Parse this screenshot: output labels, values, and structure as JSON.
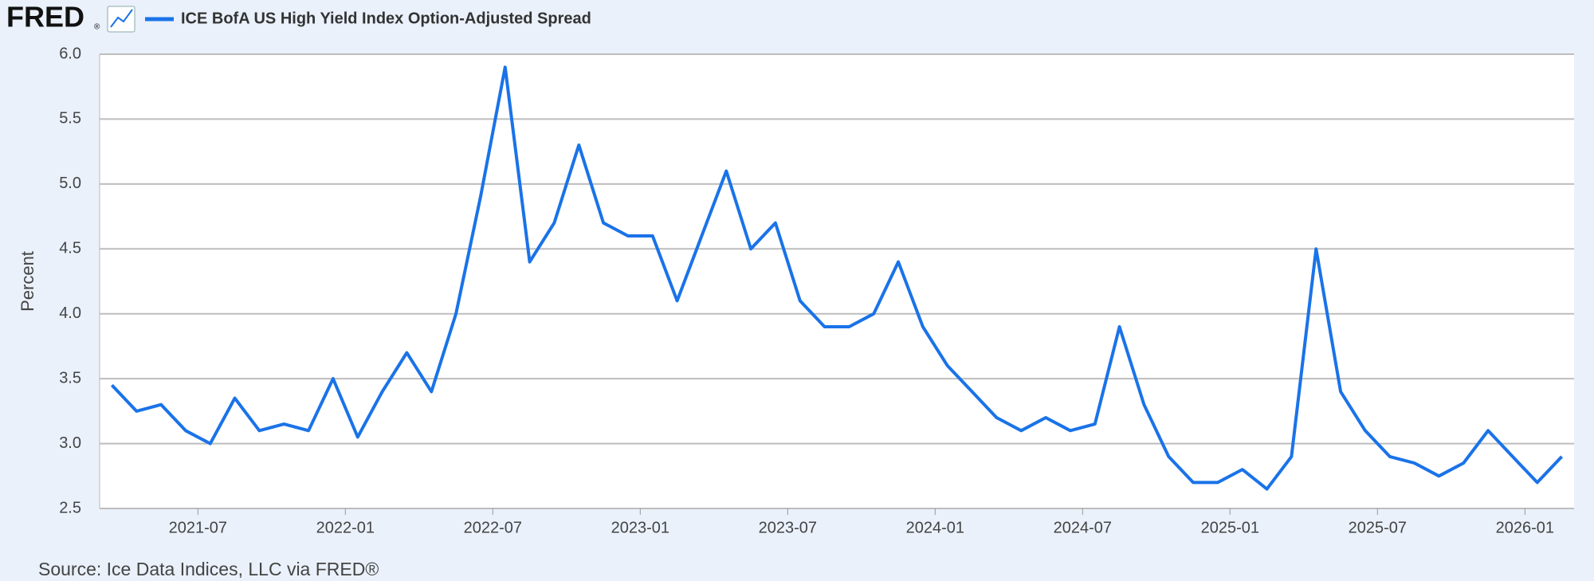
{
  "chart_data": {
    "type": "line",
    "logo": "FRED",
    "logo_mark": "®",
    "ylabel": "Percent",
    "source": "Source: Ice Data Indices, LLC via FRED®",
    "x": [
      "2021-03",
      "2021-04",
      "2021-05",
      "2021-06",
      "2021-07",
      "2021-08",
      "2021-09",
      "2021-10",
      "2021-11",
      "2021-12",
      "2022-01",
      "2022-02",
      "2022-03",
      "2022-04",
      "2022-05",
      "2022-06",
      "2022-07",
      "2022-08",
      "2022-09",
      "2022-10",
      "2022-11",
      "2022-12",
      "2023-01",
      "2023-02",
      "2023-03",
      "2023-04",
      "2023-05",
      "2023-06",
      "2023-07",
      "2023-08",
      "2023-09",
      "2023-10",
      "2023-11",
      "2023-12",
      "2024-01",
      "2024-02",
      "2024-03",
      "2024-04",
      "2024-05",
      "2024-06",
      "2024-07",
      "2024-08",
      "2024-09",
      "2024-10",
      "2024-11",
      "2024-12",
      "2025-01",
      "2025-02",
      "2025-03",
      "2025-04",
      "2025-05",
      "2025-06",
      "2025-07",
      "2025-08",
      "2025-09",
      "2025-10",
      "2025-11",
      "2025-12",
      "2026-01",
      "2026-02"
    ],
    "series": [
      {
        "name": "ICE BofA US High Yield Index Option-Adjusted Spread",
        "color": "#1a73e8",
        "values": [
          3.45,
          3.25,
          3.3,
          3.1,
          3.0,
          3.35,
          3.1,
          3.15,
          3.1,
          3.5,
          3.05,
          3.4,
          3.7,
          3.4,
          4.0,
          4.9,
          5.9,
          4.4,
          4.7,
          5.3,
          4.7,
          4.6,
          4.6,
          4.1,
          4.6,
          5.1,
          4.5,
          4.7,
          4.1,
          3.9,
          3.9,
          4.0,
          4.4,
          3.9,
          3.6,
          3.4,
          3.2,
          3.1,
          3.2,
          3.1,
          3.15,
          3.9,
          3.3,
          2.9,
          2.7,
          2.7,
          2.8,
          2.65,
          2.9,
          4.5,
          3.4,
          3.1,
          2.9,
          2.85,
          2.75,
          2.85,
          3.1,
          2.9,
          2.7,
          2.9
        ]
      }
    ],
    "xlim": [
      "2021-03",
      "2026-03"
    ],
    "xticks": [
      "2021-07",
      "2022-01",
      "2022-07",
      "2023-01",
      "2023-07",
      "2024-01",
      "2024-07",
      "2025-01",
      "2025-07",
      "2026-01"
    ],
    "ylim": [
      2.5,
      6.0
    ],
    "yticks": [
      2.5,
      {
        "value": 3.0,
        "label": "3.0"
      },
      3.5,
      {
        "value": 4.0,
        "label": "4.0"
      },
      4.5,
      {
        "value": 5.0,
        "label": "5.0"
      },
      5.5,
      {
        "value": 6.0,
        "label": "6.0"
      }
    ],
    "grid": true
  }
}
